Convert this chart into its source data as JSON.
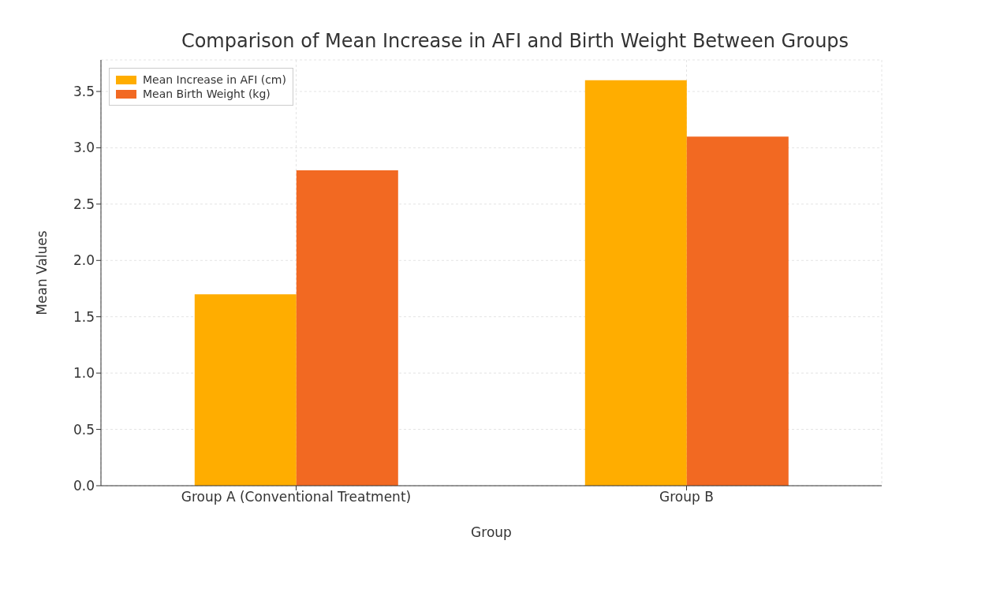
{
  "chart_data": {
    "type": "bar",
    "title": "Comparison of Mean Increase in AFI and Birth Weight Between Groups",
    "xlabel": "Group",
    "ylabel": "Mean Values",
    "categories": [
      "Group A (Conventional Treatment)",
      "Group B"
    ],
    "series": [
      {
        "name": "Mean Increase in AFI (cm)",
        "color": "#ffad00",
        "values": [
          1.7,
          3.6
        ]
      },
      {
        "name": "Mean Birth Weight (kg)",
        "color": "#f26922",
        "values": [
          2.8,
          3.1
        ]
      }
    ],
    "ylim": [
      0,
      3.78
    ],
    "yticks": [
      {
        "value": 0,
        "label": "0.0"
      },
      0.5,
      {
        "value": 1,
        "label": "1.0"
      },
      1.5,
      {
        "value": 2,
        "label": "2.0"
      },
      2.5,
      {
        "value": 3,
        "label": "3.0"
      },
      3.5
    ],
    "grid": true,
    "legend": "top left"
  }
}
